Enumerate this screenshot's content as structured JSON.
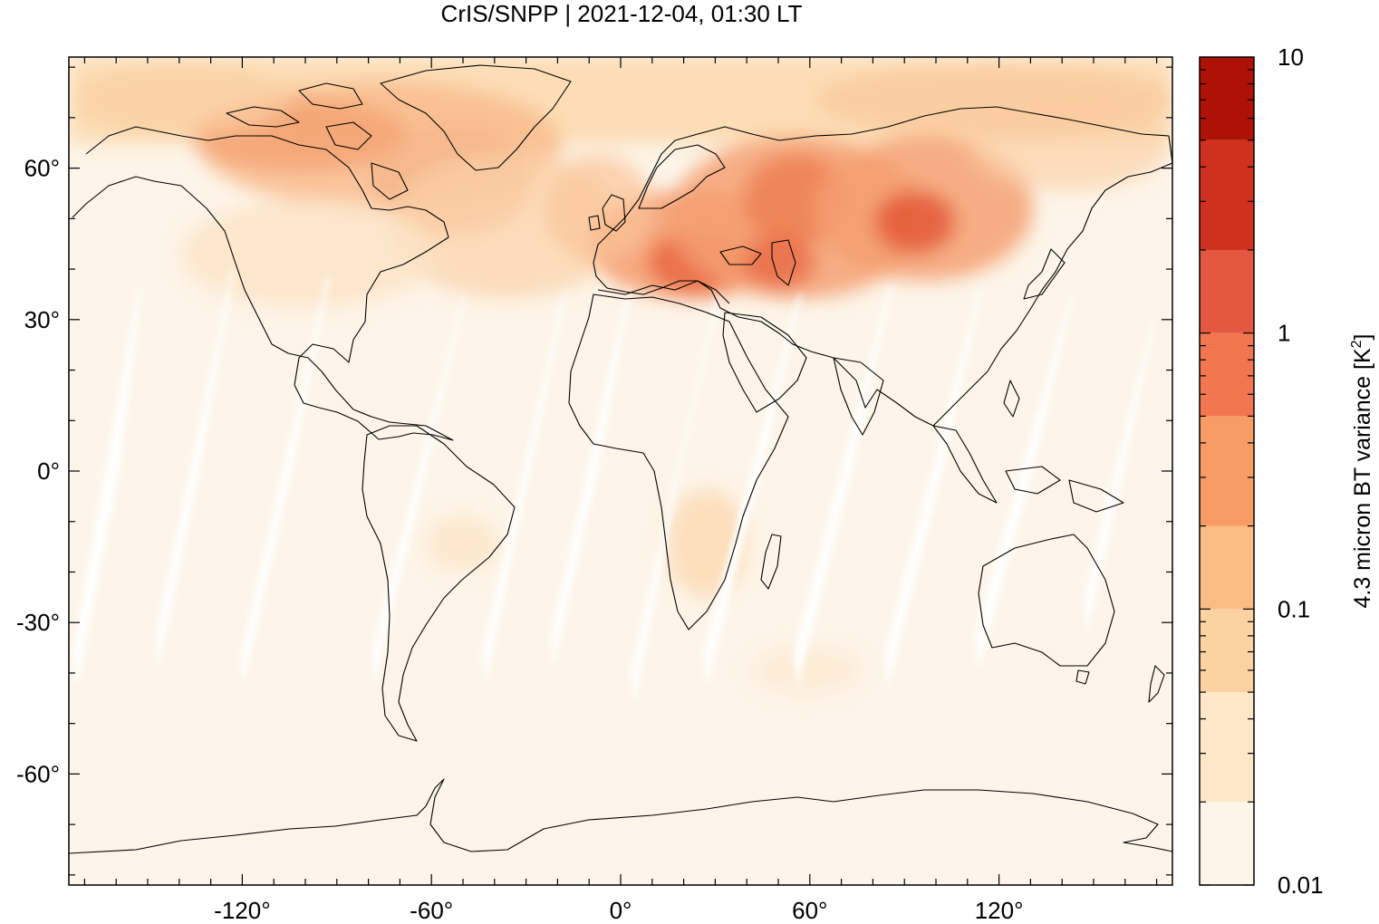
{
  "title": "CrIS/SNPP | 2021-12-04, 01:30 LT",
  "map": {
    "projection": "equirectangular",
    "lon_range": [
      -175,
      175
    ],
    "lat_range": [
      -82,
      82
    ],
    "xticks": [
      {
        "value": -120,
        "label": "-120°"
      },
      {
        "value": -60,
        "label": "-60°"
      },
      {
        "value": 0,
        "label": "0°"
      },
      {
        "value": 60,
        "label": "60°"
      },
      {
        "value": 120,
        "label": "120°"
      }
    ],
    "yticks": [
      {
        "value": 60,
        "label": "60°"
      },
      {
        "value": 30,
        "label": "30°"
      },
      {
        "value": 0,
        "label": "0°"
      },
      {
        "value": -30,
        "label": "-30°"
      },
      {
        "value": -60,
        "label": "-60°"
      }
    ],
    "background_color": "#fdf5e9",
    "coastline_color": "#000000"
  },
  "colorbar": {
    "label": "4.3 micron BT variance [K",
    "label_sup": "2",
    "label_close": "]",
    "scale": "log",
    "min": 0.01,
    "max": 10,
    "tick_labels": [
      {
        "value": 10,
        "label": "10"
      },
      {
        "value": 1,
        "label": "1"
      },
      {
        "value": 0.1,
        "label": "0.1"
      },
      {
        "value": 0.01,
        "label": "0.01"
      }
    ],
    "levels": [
      0.01,
      0.02,
      0.05,
      0.1,
      0.2,
      0.5,
      1,
      2,
      5,
      10
    ],
    "colors": [
      "#fef5e9",
      "#fce7c8",
      "#fcd3a0",
      "#fbbd84",
      "#f99b64",
      "#f27750",
      "#e45841",
      "#d0311f",
      "#ad1204"
    ]
  }
}
